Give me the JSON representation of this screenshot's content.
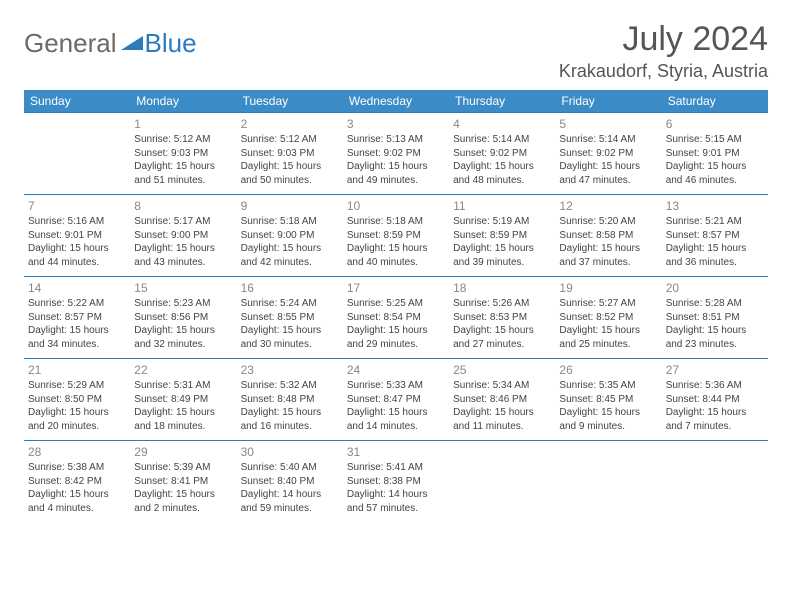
{
  "logo": {
    "word1": "General",
    "word2": "Blue"
  },
  "title": "July 2024",
  "location": "Krakaudorf, Styria, Austria",
  "colors": {
    "header_bg": "#3b8bc6",
    "header_text": "#ffffff",
    "border": "#2b7bbf",
    "daynum": "#888888",
    "body_text": "#444444",
    "logo_gray": "#6a6a6a",
    "logo_blue": "#2b7bbf"
  },
  "weekdays": [
    "Sunday",
    "Monday",
    "Tuesday",
    "Wednesday",
    "Thursday",
    "Friday",
    "Saturday"
  ],
  "weeks": [
    [
      null,
      {
        "n": "1",
        "sr": "5:12 AM",
        "ss": "9:03 PM",
        "dl": "15 hours and 51 minutes."
      },
      {
        "n": "2",
        "sr": "5:12 AM",
        "ss": "9:03 PM",
        "dl": "15 hours and 50 minutes."
      },
      {
        "n": "3",
        "sr": "5:13 AM",
        "ss": "9:02 PM",
        "dl": "15 hours and 49 minutes."
      },
      {
        "n": "4",
        "sr": "5:14 AM",
        "ss": "9:02 PM",
        "dl": "15 hours and 48 minutes."
      },
      {
        "n": "5",
        "sr": "5:14 AM",
        "ss": "9:02 PM",
        "dl": "15 hours and 47 minutes."
      },
      {
        "n": "6",
        "sr": "5:15 AM",
        "ss": "9:01 PM",
        "dl": "15 hours and 46 minutes."
      }
    ],
    [
      {
        "n": "7",
        "sr": "5:16 AM",
        "ss": "9:01 PM",
        "dl": "15 hours and 44 minutes."
      },
      {
        "n": "8",
        "sr": "5:17 AM",
        "ss": "9:00 PM",
        "dl": "15 hours and 43 minutes."
      },
      {
        "n": "9",
        "sr": "5:18 AM",
        "ss": "9:00 PM",
        "dl": "15 hours and 42 minutes."
      },
      {
        "n": "10",
        "sr": "5:18 AM",
        "ss": "8:59 PM",
        "dl": "15 hours and 40 minutes."
      },
      {
        "n": "11",
        "sr": "5:19 AM",
        "ss": "8:59 PM",
        "dl": "15 hours and 39 minutes."
      },
      {
        "n": "12",
        "sr": "5:20 AM",
        "ss": "8:58 PM",
        "dl": "15 hours and 37 minutes."
      },
      {
        "n": "13",
        "sr": "5:21 AM",
        "ss": "8:57 PM",
        "dl": "15 hours and 36 minutes."
      }
    ],
    [
      {
        "n": "14",
        "sr": "5:22 AM",
        "ss": "8:57 PM",
        "dl": "15 hours and 34 minutes."
      },
      {
        "n": "15",
        "sr": "5:23 AM",
        "ss": "8:56 PM",
        "dl": "15 hours and 32 minutes."
      },
      {
        "n": "16",
        "sr": "5:24 AM",
        "ss": "8:55 PM",
        "dl": "15 hours and 30 minutes."
      },
      {
        "n": "17",
        "sr": "5:25 AM",
        "ss": "8:54 PM",
        "dl": "15 hours and 29 minutes."
      },
      {
        "n": "18",
        "sr": "5:26 AM",
        "ss": "8:53 PM",
        "dl": "15 hours and 27 minutes."
      },
      {
        "n": "19",
        "sr": "5:27 AM",
        "ss": "8:52 PM",
        "dl": "15 hours and 25 minutes."
      },
      {
        "n": "20",
        "sr": "5:28 AM",
        "ss": "8:51 PM",
        "dl": "15 hours and 23 minutes."
      }
    ],
    [
      {
        "n": "21",
        "sr": "5:29 AM",
        "ss": "8:50 PM",
        "dl": "15 hours and 20 minutes."
      },
      {
        "n": "22",
        "sr": "5:31 AM",
        "ss": "8:49 PM",
        "dl": "15 hours and 18 minutes."
      },
      {
        "n": "23",
        "sr": "5:32 AM",
        "ss": "8:48 PM",
        "dl": "15 hours and 16 minutes."
      },
      {
        "n": "24",
        "sr": "5:33 AM",
        "ss": "8:47 PM",
        "dl": "15 hours and 14 minutes."
      },
      {
        "n": "25",
        "sr": "5:34 AM",
        "ss": "8:46 PM",
        "dl": "15 hours and 11 minutes."
      },
      {
        "n": "26",
        "sr": "5:35 AM",
        "ss": "8:45 PM",
        "dl": "15 hours and 9 minutes."
      },
      {
        "n": "27",
        "sr": "5:36 AM",
        "ss": "8:44 PM",
        "dl": "15 hours and 7 minutes."
      }
    ],
    [
      {
        "n": "28",
        "sr": "5:38 AM",
        "ss": "8:42 PM",
        "dl": "15 hours and 4 minutes."
      },
      {
        "n": "29",
        "sr": "5:39 AM",
        "ss": "8:41 PM",
        "dl": "15 hours and 2 minutes."
      },
      {
        "n": "30",
        "sr": "5:40 AM",
        "ss": "8:40 PM",
        "dl": "14 hours and 59 minutes."
      },
      {
        "n": "31",
        "sr": "5:41 AM",
        "ss": "8:38 PM",
        "dl": "14 hours and 57 minutes."
      },
      null,
      null,
      null
    ]
  ],
  "labels": {
    "sunrise": "Sunrise:",
    "sunset": "Sunset:",
    "daylight": "Daylight:"
  }
}
